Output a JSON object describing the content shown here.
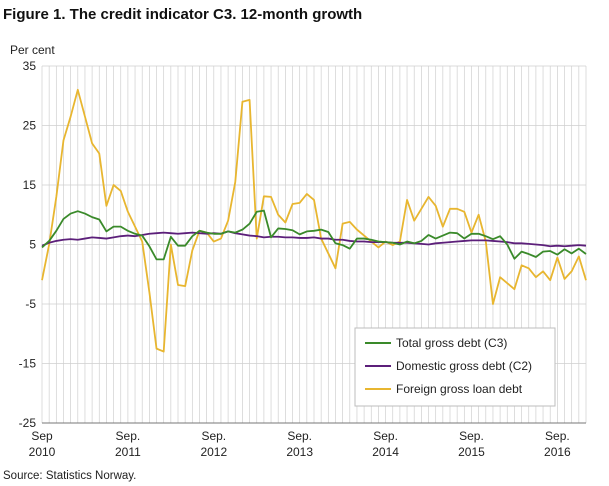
{
  "title": "Figure 1. The credit indicator C3. 12-month growth",
  "source": "Source: Statistics Norway.",
  "colors": {
    "c3": "#3a8a2a",
    "c2": "#5c1f7a",
    "foreign": "#e8b630",
    "grid": "#cfcfcf"
  },
  "chart_data": {
    "type": "line",
    "ylabel": "Per cent",
    "ylim": [
      -25,
      35
    ],
    "yticks": [
      35,
      25,
      15,
      5,
      -5,
      -15,
      -25
    ],
    "x_tick_labels": [
      {
        "line1": "Sep",
        "line2": "2010"
      },
      {
        "line1": "Sep.",
        "line2": "2011"
      },
      {
        "line1": "Sep.",
        "line2": "2012"
      },
      {
        "line1": "Sep.",
        "line2": "2013"
      },
      {
        "line1": "Sep.",
        "line2": "2014"
      },
      {
        "line1": "Sep.",
        "line2": "2015"
      },
      {
        "line1": "Sep.",
        "line2": "2016"
      }
    ],
    "x_start": "2010-09",
    "x_end": "2016-09",
    "legend_position": "bottom-right",
    "series": [
      {
        "name": "Total gross debt (C3)",
        "values": [
          4.5,
          5.6,
          7.3,
          9.3,
          10.2,
          10.6,
          10.2,
          9.6,
          9.2,
          7.2,
          8.0,
          8.0,
          7.3,
          6.8,
          6.5,
          4.7,
          2.5,
          2.5,
          6.3,
          4.8,
          4.8,
          6.4,
          7.3,
          7.0,
          6.8,
          6.8,
          7.2,
          7.0,
          7.5,
          8.5,
          10.5,
          10.7,
          6.2,
          7.7,
          7.6,
          7.4,
          6.7,
          7.2,
          7.3,
          7.5,
          7.1,
          5.2,
          4.9,
          4.3,
          6.0,
          6.0,
          5.8,
          5.5,
          5.4,
          5.3,
          5.0,
          5.5,
          5.2,
          5.6,
          6.6,
          6.0,
          6.5,
          7.0,
          6.9,
          6.0,
          6.8,
          6.8,
          6.4,
          5.9,
          6.4,
          5.0,
          2.6,
          3.8,
          3.4,
          2.9,
          3.8,
          3.9,
          3.3,
          4.2,
          3.5,
          4.3,
          3.4
        ]
      },
      {
        "name": "Domestic gross debt (C2)",
        "values": [
          4.8,
          5.3,
          5.6,
          5.8,
          5.9,
          5.8,
          6.0,
          6.2,
          6.1,
          6.0,
          6.2,
          6.4,
          6.5,
          6.4,
          6.6,
          6.8,
          6.9,
          7.0,
          6.9,
          6.8,
          6.9,
          7.0,
          6.9,
          6.8,
          6.9,
          6.8,
          7.2,
          6.9,
          6.7,
          6.5,
          6.4,
          6.2,
          6.3,
          6.3,
          6.2,
          6.2,
          6.1,
          6.1,
          6.2,
          6.0,
          6.0,
          5.8,
          5.8,
          5.6,
          5.5,
          5.5,
          5.4,
          5.4,
          5.4,
          5.3,
          5.3,
          5.3,
          5.2,
          5.1,
          5.0,
          5.2,
          5.3,
          5.4,
          5.5,
          5.6,
          5.7,
          5.7,
          5.7,
          5.6,
          5.5,
          5.4,
          5.2,
          5.2,
          5.1,
          5.0,
          4.9,
          4.7,
          4.8,
          4.7,
          4.8,
          4.9,
          4.8
        ]
      },
      {
        "name": "Foreign gross loan debt",
        "values": [
          -1.0,
          5.0,
          13.0,
          22.5,
          26.5,
          31.0,
          26.5,
          22.0,
          20.3,
          11.5,
          15.0,
          14.0,
          10.5,
          8.0,
          5.5,
          -3.0,
          -12.5,
          -13.0,
          5.0,
          -1.8,
          -2.0,
          4.0,
          7.3,
          7.0,
          5.5,
          6.0,
          9.0,
          15.5,
          29.0,
          29.3,
          6.0,
          13.1,
          13.0,
          10.0,
          8.7,
          11.8,
          12.0,
          13.5,
          12.5,
          6.0,
          3.5,
          1.0,
          8.5,
          8.8,
          7.5,
          6.5,
          5.5,
          4.5,
          5.5,
          4.9,
          5.5,
          12.5,
          9.0,
          11.0,
          13.0,
          11.5,
          8.0,
          11.0,
          11.0,
          10.5,
          7.0,
          10.0,
          5.5,
          -5.0,
          -0.5,
          -1.5,
          -2.5,
          1.5,
          1.0,
          -0.5,
          0.5,
          -1.0,
          2.8,
          -0.8,
          0.5,
          3.0,
          -1.0
        ]
      }
    ]
  }
}
